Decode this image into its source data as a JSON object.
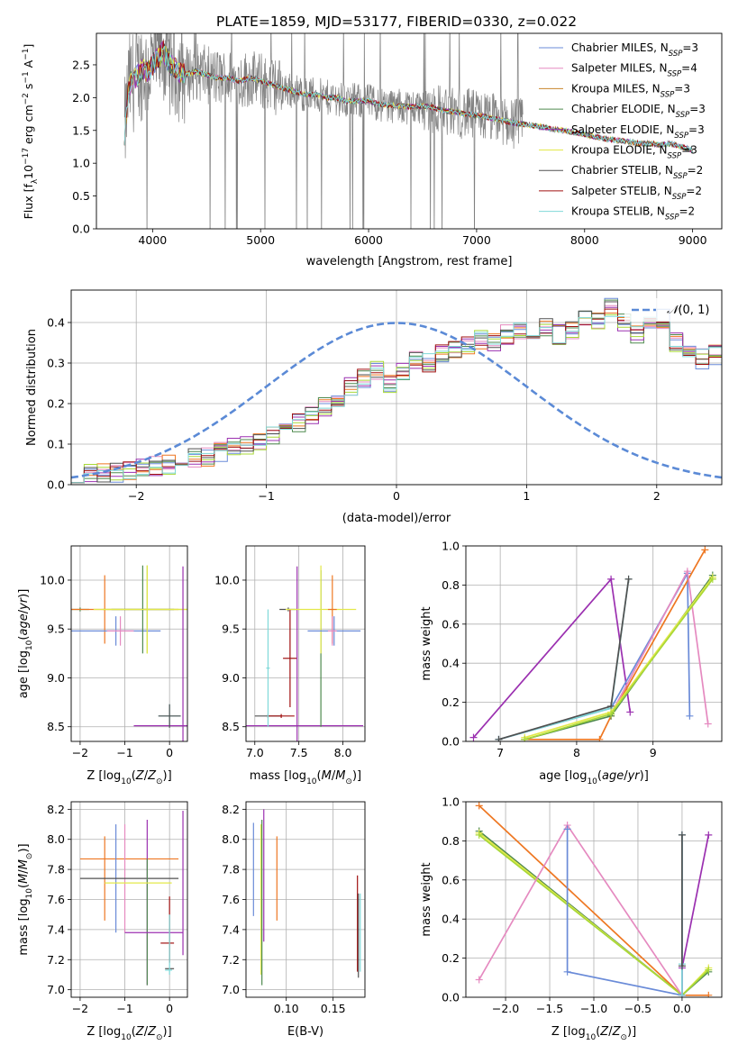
{
  "figure_title": "PLATE=1859, MJD=53177, FIBERID=0330, z=0.022",
  "colors": {
    "Chabrier MILES": "#6a8bd8",
    "Salpeter MILES": "#e58ac0",
    "Kroupa MILES": "#c8862b",
    "Chabrier ELODIE": "#4f8a4f",
    "Salpeter ELODIE": "#9b30b0",
    "Kroupa ELODIE": "#e3e84a",
    "Chabrier STELIB": "#505050",
    "Salpeter STELIB": "#a01010",
    "Kroupa STELIB": "#7fd8d8",
    "orange": "#ee7722",
    "lime": "#a8d838",
    "data": "#808080",
    "gauss": "#5b8ad6"
  },
  "chart_data": [
    {
      "id": "spectrum",
      "type": "line",
      "title": "PLATE=1859, MJD=53177, FIBERID=0330, z=0.022",
      "xlabel": "wavelength [Angstrom, rest frame]",
      "ylabel": "Flux [f_λ10^-17 erg cm^-2 s^-1 A^-1]",
      "xlim": [
        3480,
        9270
      ],
      "ylim": [
        0,
        2.98
      ],
      "xticks": [
        4000,
        5000,
        6000,
        7000,
        8000,
        9000
      ],
      "yticks": [
        0.0,
        0.5,
        1.0,
        1.5,
        2.0,
        2.5
      ],
      "legend_position": "upper right",
      "legend": [
        "Chabrier MILES, N_SSP=3",
        "Salpeter MILES, N_SSP=4",
        "Kroupa MILES, N_SSP=3",
        "Chabrier ELODIE, N_SSP=3",
        "Salpeter ELODIE, N_SSP=3",
        "Kroupa ELODIE, N_SSP=3",
        "Chabrier STELIB, N_SSP=2",
        "Salpeter STELIB, N_SSP=2",
        "Kroupa STELIB, N_SSP=2"
      ],
      "continuum_x": [
        3740,
        3780,
        3850,
        3900,
        3950,
        4000,
        4050,
        4100,
        4150,
        4200,
        4300,
        4400,
        4500,
        4600,
        4700,
        4800,
        4900,
        5000,
        5100,
        5200,
        5300,
        5400,
        5500,
        5600,
        5700,
        5800,
        5900,
        6000,
        6100,
        6200,
        6300,
        6400,
        6500,
        6600,
        6700,
        6800,
        6900,
        7000,
        7100,
        7200,
        7300,
        7400,
        7500,
        7600,
        7700,
        7800,
        7900,
        8000,
        8100,
        8200,
        8300,
        8400,
        8500,
        8600,
        8700,
        8800,
        8900,
        9000
      ],
      "continuum_y": [
        1.45,
        2.2,
        2.3,
        2.45,
        2.4,
        2.5,
        2.6,
        2.7,
        2.55,
        2.45,
        2.35,
        2.4,
        2.35,
        2.3,
        2.3,
        2.25,
        2.3,
        2.25,
        2.2,
        2.15,
        2.1,
        2.05,
        2.05,
        2.0,
        2.0,
        1.95,
        1.95,
        1.95,
        1.9,
        1.88,
        1.87,
        1.86,
        1.87,
        1.85,
        1.8,
        1.78,
        1.75,
        1.73,
        1.7,
        1.67,
        1.63,
        1.6,
        1.58,
        1.56,
        1.52,
        1.5,
        1.47,
        1.44,
        1.4,
        1.37,
        1.35,
        1.33,
        1.3,
        1.3,
        1.28,
        1.3,
        1.25,
        1.2
      ],
      "data_end_x": 7430
    },
    {
      "id": "residuals",
      "type": "histogram",
      "xlabel": "(data-model)/error",
      "ylabel": "Normed distribution",
      "xlim": [
        -2.5,
        2.5
      ],
      "ylim": [
        0,
        0.48
      ],
      "xticks": [
        -2,
        -1,
        0,
        1,
        2
      ],
      "yticks": [
        0.0,
        0.1,
        0.2,
        0.3,
        0.4
      ],
      "legend": [
        "N(0,1)"
      ],
      "legend_position": "upper right",
      "bin_width": 0.1,
      "bin_start": -2.5,
      "base_heights": [
        0.025,
        0.025,
        0.028,
        0.03,
        0.035,
        0.04,
        0.045,
        0.05,
        0.06,
        0.065,
        0.07,
        0.08,
        0.09,
        0.1,
        0.11,
        0.12,
        0.13,
        0.15,
        0.17,
        0.19,
        0.21,
        0.24,
        0.26,
        0.28,
        0.25,
        0.28,
        0.31,
        0.3,
        0.32,
        0.33,
        0.34,
        0.36,
        0.35,
        0.37,
        0.38,
        0.38,
        0.39,
        0.37,
        0.38,
        0.41,
        0.4,
        0.44,
        0.4,
        0.37,
        0.39,
        0.41,
        0.35,
        0.33,
        0.31,
        0.32,
        0.31,
        0.29,
        0.28,
        0.27,
        0.25,
        0.23,
        0.22,
        0.2,
        0.19,
        0.18,
        0.17,
        0.15,
        0.14,
        0.12,
        0.11,
        0.1,
        0.09,
        0.08,
        0.075,
        0.07,
        0.06,
        0.055,
        0.05,
        0.045,
        0.04,
        0.035,
        0.03,
        0.025,
        0.022,
        0.02
      ],
      "gaussian": {
        "mu": 0,
        "sigma": 1
      }
    },
    {
      "id": "age-vs-Z",
      "type": "errorbar",
      "xlabel": "Z [log10(Z/Z_sun)]",
      "ylabel": "age  [log10(age/yr)]",
      "xlim": [
        -2.2,
        0.4
      ],
      "ylim": [
        8.35,
        10.35
      ],
      "xticks": [
        -2,
        -1,
        0
      ],
      "yticks": [
        8.5,
        9.0,
        9.5,
        10.0
      ],
      "points": [
        {
          "x": -2.0,
          "xerr": 0.2,
          "y": 9.7,
          "yerr": 0.02,
          "c": "#4f8a4f"
        },
        {
          "x": -1.45,
          "xerr": 1.65,
          "y": 9.7,
          "yerr": 0.35,
          "c": "#ee7722"
        },
        {
          "x": -1.2,
          "xerr": 1.0,
          "y": 9.48,
          "yerr": 0.15,
          "c": "#6a8bd8"
        },
        {
          "x": -1.1,
          "xerr": 0.3,
          "y": 9.48,
          "yerr": 0.15,
          "c": "#e58ac0"
        },
        {
          "x": -0.5,
          "xerr": 1.0,
          "y": 9.7,
          "yerr": 0.45,
          "c": "#a8d838"
        },
        {
          "x": -0.6,
          "xerr": 0.7,
          "y": 9.7,
          "yerr": 0.45,
          "c": "#4f8a4f"
        },
        {
          "x": -0.5,
          "xerr": 1.2,
          "y": 9.7,
          "yerr": 0.45,
          "c": "#e3e84a"
        },
        {
          "x": 0.0,
          "xerr": 0.25,
          "y": 8.61,
          "yerr": 0.12,
          "c": "#7fd8d8"
        },
        {
          "x": 0.3,
          "xerr": 1.1,
          "y": 8.51,
          "yerr": 1.63,
          "c": "#9b30b0"
        },
        {
          "x": 0.0,
          "xerr": 0.25,
          "y": 8.61,
          "yerr": 0.12,
          "c": "#505050"
        }
      ]
    },
    {
      "id": "age-vs-mass",
      "type": "errorbar",
      "xlabel": "mass [log10(M/M_sun)]",
      "ylabel": "",
      "xlim": [
        6.9,
        8.25
      ],
      "ylim": [
        8.35,
        10.35
      ],
      "xticks": [
        7.0,
        7.5,
        8.0
      ],
      "yticks": [
        8.5,
        9.0,
        9.5,
        10.0
      ],
      "points": [
        {
          "x": 7.15,
          "xerr": 0.15,
          "y": 8.61,
          "yerr": 0.02,
          "c": "#505050"
        },
        {
          "x": 7.3,
          "xerr": 0.15,
          "y": 8.61,
          "yerr": 0.02,
          "c": "#a01010"
        },
        {
          "x": 7.38,
          "xerr": 0.1,
          "y": 9.7,
          "yerr": 0.02,
          "c": "#505050"
        },
        {
          "x": 7.4,
          "xerr": 0.08,
          "y": 9.2,
          "yerr": 0.5,
          "c": "#a01010"
        },
        {
          "x": 7.48,
          "xerr": 0.75,
          "y": 8.51,
          "yerr": 1.63,
          "c": "#9b30b0"
        },
        {
          "x": 7.75,
          "xerr": 0.0,
          "y": 9.3,
          "yerr": 0.8,
          "c": "#4f8a4f"
        },
        {
          "x": 7.75,
          "xerr": 0.4,
          "y": 9.7,
          "yerr": 0.45,
          "c": "#e3e84a"
        },
        {
          "x": 7.88,
          "xerr": 0.05,
          "y": 9.7,
          "yerr": 0.35,
          "c": "#ee7722"
        },
        {
          "x": 7.9,
          "xerr": 0.3,
          "y": 9.48,
          "yerr": 0.15,
          "c": "#6a8bd8"
        },
        {
          "x": 7.88,
          "xerr": 0.05,
          "y": 9.48,
          "yerr": 0.15,
          "c": "#e58ac0"
        },
        {
          "x": 7.15,
          "xerr": 0.02,
          "y": 9.1,
          "yerr": 0.6,
          "c": "#7fd8d8"
        }
      ]
    },
    {
      "id": "mass-weight-vs-age",
      "type": "line",
      "xlabel": "age  [log10(age/yr)]",
      "ylabel": "mass weight",
      "xlim": [
        6.55,
        9.9
      ],
      "ylim": [
        0,
        1.0
      ],
      "xticks": [
        7,
        8,
        9
      ],
      "yticks": [
        0.0,
        0.2,
        0.4,
        0.6,
        0.8,
        1.0
      ],
      "series": [
        {
          "name": "Salpeter ELODIE",
          "c": "#9b30b0",
          "x": [
            6.65,
            8.45,
            8.7
          ],
          "y": [
            0.02,
            0.83,
            0.15
          ]
        },
        {
          "name": "Chabrier MILES",
          "c": "#6a8bd8",
          "x": [
            6.98,
            8.45,
            9.45,
            9.48
          ],
          "y": [
            0.01,
            0.17,
            0.86,
            0.13
          ]
        },
        {
          "name": "Kroupa STELIB",
          "c": "#7fd8d8",
          "x": [
            6.98,
            8.45,
            8.68
          ],
          "y": [
            0.01,
            0.17,
            0.83
          ]
        },
        {
          "name": "Chabrier STELIB",
          "c": "#505050",
          "x": [
            6.98,
            8.45,
            8.68
          ],
          "y": [
            0.01,
            0.18,
            0.83
          ]
        },
        {
          "name": "Kroupa MILES",
          "c": "#ee7722",
          "x": [
            7.32,
            8.3,
            8.45,
            9.68
          ],
          "y": [
            0.01,
            0.01,
            0.13,
            0.98
          ]
        },
        {
          "name": "Salpeter MILES",
          "c": "#e58ac0",
          "x": [
            8.45,
            9.45,
            9.72
          ],
          "y": [
            0.14,
            0.87,
            0.09
          ]
        },
        {
          "name": "Chabrier ELODIE",
          "c": "#4f8a4f",
          "x": [
            7.32,
            8.45,
            9.78
          ],
          "y": [
            0.01,
            0.13,
            0.85
          ]
        },
        {
          "name": "Kroupa ELODIE",
          "c": "#e3e84a",
          "x": [
            7.32,
            8.45,
            9.78
          ],
          "y": [
            0.02,
            0.15,
            0.84
          ]
        },
        {
          "name": "lime",
          "c": "#a8d838",
          "x": [
            7.32,
            8.45,
            9.78
          ],
          "y": [
            0.01,
            0.14,
            0.83
          ]
        }
      ]
    },
    {
      "id": "mass-vs-Z",
      "type": "errorbar",
      "xlabel": "Z [log10(Z/Z_sun)]",
      "ylabel": "mass [log10(M/M_sun)]",
      "xlim": [
        -2.2,
        0.4
      ],
      "ylim": [
        6.95,
        8.25
      ],
      "xticks": [
        -2,
        -1,
        0
      ],
      "yticks": [
        7.0,
        7.2,
        7.4,
        7.6,
        7.8,
        8.0,
        8.2
      ],
      "points": [
        {
          "x": -0.9,
          "xerr": 1.1,
          "y": 7.87,
          "yerr": 0.0,
          "c": "#ee7722"
        },
        {
          "x": -1.45,
          "xerr": 0.0,
          "y": 7.74,
          "yerr": 0.28,
          "c": "#ee7722"
        },
        {
          "x": -1.2,
          "xerr": 0.0,
          "y": 7.74,
          "yerr": 0.36,
          "c": "#6a8bd8"
        },
        {
          "x": -1.0,
          "xerr": 0.0,
          "y": 7.74,
          "yerr": 0.36,
          "c": "#e58ac0"
        },
        {
          "x": -0.9,
          "xerr": 1.1,
          "y": 7.74,
          "yerr": 0.0,
          "c": "#505050"
        },
        {
          "x": -0.5,
          "xerr": 0.0,
          "y": 7.58,
          "yerr": 0.55,
          "c": "#9b30b0"
        },
        {
          "x": -0.5,
          "xerr": 0.0,
          "y": 7.45,
          "yerr": 0.42,
          "c": "#4f8a4f"
        },
        {
          "x": -0.7,
          "xerr": 0.75,
          "y": 7.71,
          "yerr": 0.0,
          "c": "#e3e84a"
        },
        {
          "x": -0.35,
          "xerr": 0.65,
          "y": 7.38,
          "yerr": 0.0,
          "c": "#9b30b0"
        },
        {
          "x": 0.0,
          "xerr": 0.0,
          "y": 7.4,
          "yerr": 0.22,
          "c": "#a01010"
        },
        {
          "x": -0.05,
          "xerr": 0.15,
          "y": 7.31,
          "yerr": 0.0,
          "c": "#a01010"
        },
        {
          "x": 0.0,
          "xerr": 0.1,
          "y": 7.14,
          "yerr": 0.0,
          "c": "#505050"
        },
        {
          "x": -0.02,
          "xerr": 0.08,
          "y": 7.13,
          "yerr": 0.0,
          "c": "#7fd8d8"
        },
        {
          "x": 0.3,
          "xerr": 0.0,
          "y": 7.71,
          "yerr": 0.48,
          "c": "#9b30b0"
        },
        {
          "x": 0.0,
          "xerr": 0.0,
          "y": 7.3,
          "yerr": 0.2,
          "c": "#7fd8d8"
        }
      ]
    },
    {
      "id": "mass-vs-EBV",
      "type": "errorbar",
      "xlabel": "E(B-V)",
      "ylabel": "",
      "xlim": [
        0.057,
        0.184
      ],
      "ylim": [
        6.95,
        8.25
      ],
      "xticks": [
        0.1,
        0.15
      ],
      "yticks": [
        7.0,
        7.2,
        7.4,
        7.6,
        7.8,
        8.0,
        8.2
      ],
      "points": [
        {
          "x": 0.065,
          "y": 7.8,
          "yerr": 0.31,
          "c": "#6a8bd8"
        },
        {
          "x": 0.073,
          "y": 7.6,
          "yerr": 0.5,
          "c": "#e3e84a"
        },
        {
          "x": 0.074,
          "y": 7.58,
          "yerr": 0.55,
          "c": "#4f8a4f"
        },
        {
          "x": 0.076,
          "y": 7.76,
          "yerr": 0.44,
          "c": "#9b30b0"
        },
        {
          "x": 0.09,
          "y": 7.74,
          "yerr": 0.28,
          "c": "#ee7722"
        },
        {
          "x": 0.176,
          "y": 7.44,
          "yerr": 0.32,
          "c": "#a01010"
        },
        {
          "x": 0.177,
          "y": 7.36,
          "yerr": 0.28,
          "c": "#505050"
        },
        {
          "x": 0.179,
          "y": 7.38,
          "yerr": 0.26,
          "c": "#7fd8d8"
        }
      ]
    },
    {
      "id": "mass-weight-vs-Z",
      "type": "line",
      "xlabel": "Z [log10(Z/Z_sun)]",
      "ylabel": "mass weight",
      "xlim": [
        -2.45,
        0.45
      ],
      "ylim": [
        0,
        1.0
      ],
      "xticks": [
        -2.0,
        -1.5,
        -1.0,
        -0.5,
        0.0
      ],
      "yticks": [
        0.0,
        0.2,
        0.4,
        0.6,
        0.8,
        1.0
      ],
      "series": [
        {
          "name": "Kroupa MILES",
          "c": "#ee7722",
          "x": [
            -2.3,
            0.0,
            0.3
          ],
          "y": [
            0.98,
            0.01,
            0.01
          ]
        },
        {
          "name": "Chabrier ELODIE",
          "c": "#4f8a4f",
          "x": [
            -2.3,
            0.0,
            0.3
          ],
          "y": [
            0.85,
            0.01,
            0.13
          ]
        },
        {
          "name": "Kroupa ELODIE",
          "c": "#e3e84a",
          "x": [
            -2.3,
            0.0,
            0.3
          ],
          "y": [
            0.84,
            0.01,
            0.15
          ]
        },
        {
          "name": "lime",
          "c": "#a8d838",
          "x": [
            -2.3,
            0.0,
            0.3
          ],
          "y": [
            0.83,
            0.01,
            0.14
          ]
        },
        {
          "name": "Salpeter MILES",
          "c": "#e58ac0",
          "x": [
            -2.3,
            -1.3,
            0.0
          ],
          "y": [
            0.09,
            0.88,
            0.01
          ]
        },
        {
          "name": "Chabrier MILES",
          "c": "#6a8bd8",
          "x": [
            -1.3,
            -1.3,
            0.0,
            0.0
          ],
          "y": [
            0.86,
            0.13,
            0.01,
            0.83
          ]
        },
        {
          "name": "Salpeter ELODIE",
          "c": "#9b30b0",
          "x": [
            0.0,
            0.0,
            0.3
          ],
          "y": [
            0.01,
            0.15,
            0.83
          ]
        },
        {
          "name": "Kroupa STELIB",
          "c": "#7fd8d8",
          "x": [
            0.0,
            0.0,
            0.0
          ],
          "y": [
            0.01,
            0.17,
            0.83
          ]
        },
        {
          "name": "Chabrier STELIB",
          "c": "#505050",
          "x": [
            0.0,
            0.0
          ],
          "y": [
            0.16,
            0.83
          ]
        }
      ]
    }
  ]
}
